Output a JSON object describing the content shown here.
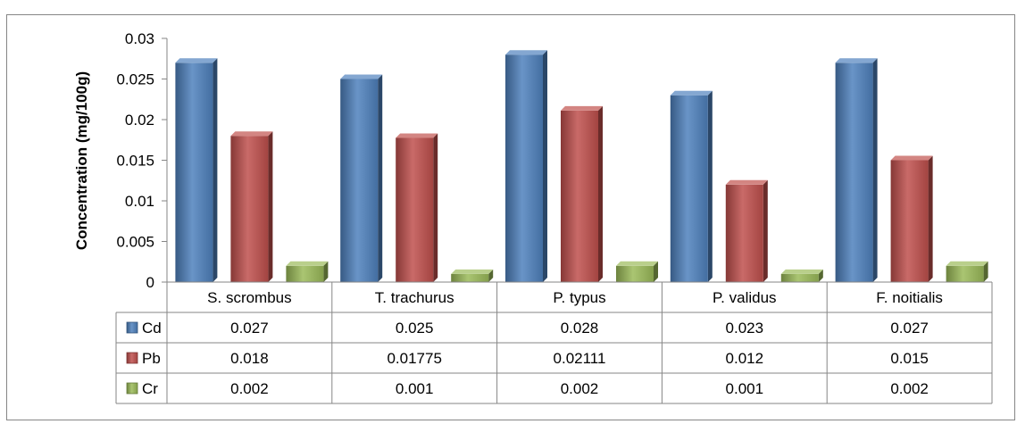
{
  "chart_data": {
    "type": "bar",
    "title": "",
    "xlabel": "",
    "ylabel": "Concentration (mg/100g)",
    "categories": [
      "S. scrombus",
      "T. trachurus",
      "P. typus",
      "P. validus",
      "F. noitialis"
    ],
    "series": [
      {
        "name": "Cd",
        "values": [
          0.027,
          0.025,
          0.028,
          0.023,
          0.027
        ],
        "color": "#4f81bd",
        "table_values": [
          "0.027",
          "0.025",
          "0.028",
          "0.023",
          "0.027"
        ]
      },
      {
        "name": "Pb",
        "values": [
          0.018,
          0.01775,
          0.02111,
          0.012,
          0.015
        ],
        "color": "#c0504d",
        "table_values": [
          "0.018",
          "0.01775",
          "0.02111",
          "0.012",
          "0.015"
        ]
      },
      {
        "name": "Cr",
        "values": [
          0.002,
          0.001,
          0.002,
          0.001,
          0.002
        ],
        "color": "#9bbb59",
        "table_values": [
          "0.002",
          "0.001",
          "0.002",
          "0.001",
          "0.002"
        ]
      }
    ],
    "ylim": [
      0,
      0.03
    ],
    "yticks": [
      "0",
      "0.005",
      "0.01",
      "0.015",
      "0.02",
      "0.025",
      "0.03"
    ],
    "grid": false,
    "legend": "data-table",
    "bar_style": "3d"
  }
}
